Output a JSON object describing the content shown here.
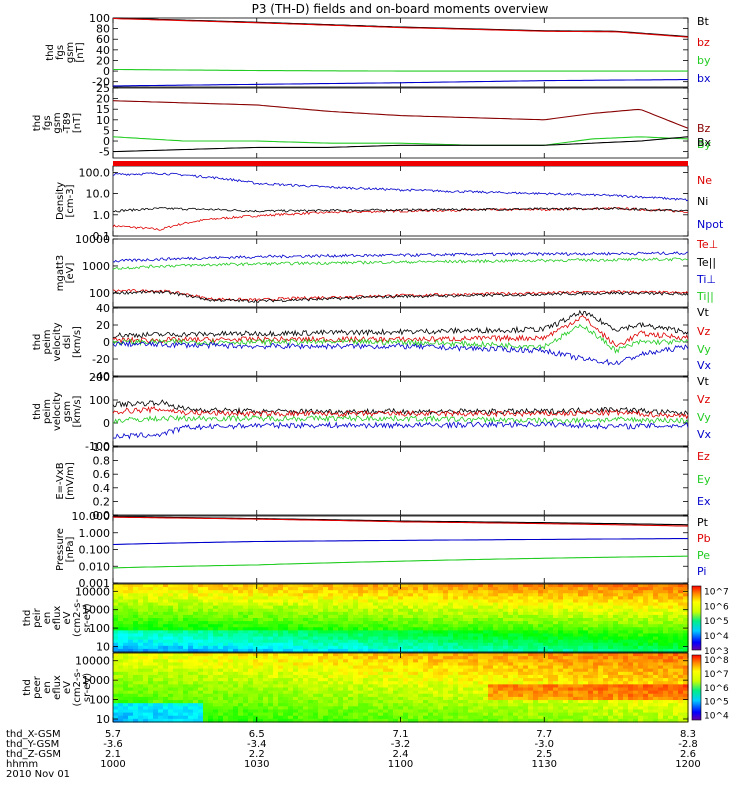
{
  "title": "P3 (TH-D) fields and on-board moments overview",
  "date": "2010 Nov 01",
  "colors": {
    "black": "#000000",
    "red": "#dd0000",
    "green": "#22cc22",
    "blue": "#0000cc",
    "darkred": "#880000"
  },
  "ephemeris": {
    "rows": [
      {
        "label": "thd_X-GSM",
        "values": [
          "5.7",
          "6.5",
          "7.1",
          "7.7",
          "8.3"
        ]
      },
      {
        "label": "thd_Y-GSM",
        "values": [
          "-3.6",
          "-3.4",
          "-3.2",
          "-3.0",
          "-2.8"
        ]
      },
      {
        "label": "thd_Z-GSM",
        "values": [
          "2.1",
          "2.2",
          "2.4",
          "2.5",
          "2.6"
        ]
      },
      {
        "label": "hhmm",
        "values": [
          "1000",
          "1030",
          "1100",
          "1130",
          "1200"
        ]
      }
    ]
  },
  "chart_data": [
    {
      "type": "line",
      "id": "fgs_gsm",
      "ylabel": [
        "thd",
        "fgs",
        "gsm",
        "[nT]"
      ],
      "ylim": [
        -30,
        100
      ],
      "yticks": [
        "100",
        "80",
        "60",
        "40",
        "20",
        "0",
        "-20"
      ],
      "ytick_values": [
        100,
        80,
        60,
        40,
        20,
        0,
        -20
      ],
      "legend": [
        "Bt",
        "bz",
        "by",
        "bx"
      ],
      "x": [
        1000,
        1030,
        1100,
        1130,
        1145,
        1200
      ],
      "series": [
        {
          "name": "Bt",
          "color": "#000000",
          "values": [
            100,
            92,
            83,
            76,
            75,
            65
          ]
        },
        {
          "name": "bz",
          "color": "#dd0000",
          "values": [
            99,
            91,
            82,
            75,
            74,
            64
          ]
        },
        {
          "name": "by",
          "color": "#22cc22",
          "values": [
            3,
            1,
            0,
            0,
            0,
            0
          ]
        },
        {
          "name": "bx",
          "color": "#0000cc",
          "values": [
            -28,
            -25,
            -22,
            -18,
            -17,
            -16
          ]
        }
      ]
    },
    {
      "type": "line",
      "id": "fgs_dsl",
      "ylabel": [
        "thd",
        "fgs",
        "gsm",
        "-T89",
        "[nT]"
      ],
      "ylim": [
        -8,
        25
      ],
      "yticks": [
        "25",
        "20",
        "15",
        "10",
        "5",
        "0",
        "-5"
      ],
      "ytick_values": [
        25,
        20,
        15,
        10,
        5,
        0,
        -5
      ],
      "legend": [
        "Bz",
        "By",
        "Bx"
      ],
      "x": [
        1000,
        1015,
        1030,
        1045,
        1100,
        1115,
        1130,
        1140,
        1150,
        1200
      ],
      "series": [
        {
          "name": "Bz",
          "color": "#880000",
          "values": [
            19,
            18,
            17,
            14,
            12,
            11,
            10,
            13,
            15,
            6
          ]
        },
        {
          "name": "By",
          "color": "#22cc22",
          "values": [
            2,
            0,
            0,
            -1,
            -1,
            -2,
            -2,
            1,
            2,
            1
          ]
        },
        {
          "name": "Bx",
          "color": "#000000",
          "values": [
            -5,
            -4,
            -3,
            -3,
            -2,
            -2,
            -2,
            -1,
            0,
            2
          ]
        }
      ]
    },
    {
      "type": "line",
      "id": "density",
      "scale": "log",
      "ylabel": [
        "Density",
        "[cm-3]"
      ],
      "ylim": [
        0.1,
        200
      ],
      "yticks": [
        "100.0",
        "10.0",
        "1.0",
        "0.1"
      ],
      "ytick_values": [
        100,
        10,
        1,
        0.1
      ],
      "legend": [
        "Ne",
        "Ni",
        "Npot"
      ],
      "x": [
        1000,
        1010,
        1020,
        1030,
        1045,
        1100,
        1115,
        1130,
        1145,
        1200
      ],
      "series": [
        {
          "name": "Ne",
          "color": "#dd0000",
          "values": [
            0.3,
            0.2,
            0.6,
            0.9,
            1.3,
            1.5,
            1.7,
            1.8,
            2.0,
            1.4
          ]
        },
        {
          "name": "Ni",
          "color": "#000000",
          "values": [
            1.5,
            2.0,
            1.8,
            1.5,
            1.6,
            1.7,
            1.8,
            1.9,
            2.0,
            1.5
          ]
        },
        {
          "name": "Npot",
          "color": "#0000cc",
          "values": [
            80,
            90,
            60,
            30,
            20,
            15,
            12,
            10,
            8,
            5
          ]
        }
      ]
    },
    {
      "type": "line",
      "id": "temperature",
      "scale": "log",
      "ylabel": [
        "mgatt3",
        "[eV]"
      ],
      "ylim": [
        30,
        10000
      ],
      "yticks": [
        "10000",
        "1000",
        "100"
      ],
      "ytick_values": [
        10000,
        1000,
        100
      ],
      "legend": [
        "Te⊥",
        "Te||",
        "Ti⊥",
        "Ti||"
      ],
      "x": [
        1000,
        1010,
        1020,
        1030,
        1045,
        1100,
        1115,
        1130,
        1145,
        1200
      ],
      "series": [
        {
          "name": "Te⊥",
          "color": "#dd0000",
          "values": [
            120,
            120,
            60,
            55,
            70,
            80,
            90,
            100,
            110,
            100
          ]
        },
        {
          "name": "Te||",
          "color": "#000000",
          "values": [
            100,
            110,
            55,
            50,
            60,
            75,
            80,
            90,
            100,
            90
          ]
        },
        {
          "name": "Ti⊥",
          "color": "#0000cc",
          "values": [
            1500,
            1800,
            2000,
            2200,
            2400,
            2500,
            2700,
            2800,
            2900,
            3000
          ]
        },
        {
          "name": "Ti||",
          "color": "#22cc22",
          "values": [
            800,
            1000,
            1100,
            1200,
            1300,
            1400,
            1500,
            1600,
            1700,
            1800
          ]
        }
      ]
    },
    {
      "type": "line",
      "id": "velocity_dsl",
      "ylabel": [
        "thd",
        "peim",
        "velocity",
        "dsl",
        "[km/s]"
      ],
      "ylim": [
        -40,
        40
      ],
      "yticks": [
        "40",
        "20",
        "0",
        "-20",
        "-40"
      ],
      "ytick_values": [
        40,
        20,
        0,
        -20,
        -40
      ],
      "legend": [
        "Vt",
        "Vz",
        "Vy",
        "Vx"
      ],
      "x": [
        1000,
        1030,
        1100,
        1130,
        1138,
        1145,
        1150,
        1200
      ],
      "series": [
        {
          "name": "Vt",
          "color": "#000000",
          "values": [
            8,
            10,
            12,
            15,
            35,
            15,
            20,
            12
          ]
        },
        {
          "name": "Vz",
          "color": "#dd0000",
          "values": [
            2,
            3,
            3,
            5,
            30,
            -5,
            10,
            5
          ]
        },
        {
          "name": "Vy",
          "color": "#22cc22",
          "values": [
            0,
            0,
            0,
            -5,
            20,
            -10,
            0,
            0
          ]
        },
        {
          "name": "Vx",
          "color": "#0000cc",
          "values": [
            -2,
            -5,
            -5,
            -10,
            -20,
            -25,
            -15,
            -5
          ]
        }
      ]
    },
    {
      "type": "line",
      "id": "velocity_gsm",
      "ylabel": [
        "thd",
        "peim",
        "velocity",
        "gsm",
        "[km/s]"
      ],
      "ylim": [
        -100,
        200
      ],
      "yticks": [
        "200",
        "100",
        "0",
        "-100"
      ],
      "ytick_values": [
        200,
        100,
        0,
        -100
      ],
      "legend": [
        "Vt",
        "Vz",
        "Vy",
        "Vx"
      ],
      "x": [
        1000,
        1010,
        1015,
        1030,
        1100,
        1130,
        1145,
        1200
      ],
      "series": [
        {
          "name": "Vt",
          "color": "#000000",
          "values": [
            80,
            90,
            60,
            50,
            50,
            50,
            60,
            40
          ]
        },
        {
          "name": "Vz",
          "color": "#dd0000",
          "values": [
            50,
            60,
            45,
            40,
            40,
            40,
            45,
            30
          ]
        },
        {
          "name": "Vy",
          "color": "#22cc22",
          "values": [
            10,
            20,
            20,
            20,
            20,
            10,
            15,
            10
          ]
        },
        {
          "name": "Vx",
          "color": "#0000cc",
          "values": [
            -60,
            -50,
            -20,
            -10,
            -10,
            -5,
            -15,
            -10
          ]
        }
      ]
    },
    {
      "type": "line",
      "id": "efield",
      "ylabel": [
        "E=-VxB",
        "[mV/m]"
      ],
      "ylim": [
        0,
        1
      ],
      "yticks": [
        "1.0",
        "0.8",
        "0.6",
        "0.4",
        "0.2",
        "0.0"
      ],
      "ytick_values": [
        1.0,
        0.8,
        0.6,
        0.4,
        0.2,
        0.0
      ],
      "legend": [
        "Ez",
        "Ey",
        "Ex"
      ],
      "x": [],
      "series": []
    },
    {
      "type": "line",
      "id": "pressure",
      "scale": "log",
      "ylabel": [
        "Pressure",
        "[nPa]"
      ],
      "ylim": [
        0.001,
        10
      ],
      "yticks": [
        "10.000",
        "1.000",
        "0.100",
        "0.010",
        "0.001"
      ],
      "ytick_values": [
        10,
        1,
        0.1,
        0.01,
        0.001
      ],
      "legend": [
        "Pt",
        "Pb",
        "Pe",
        "Pi"
      ],
      "x": [
        1000,
        1030,
        1100,
        1130,
        1200
      ],
      "series": [
        {
          "name": "Pt",
          "color": "#000000",
          "values": [
            9,
            7,
            5,
            4,
            3
          ]
        },
        {
          "name": "Pb",
          "color": "#dd0000",
          "values": [
            8.5,
            6.5,
            4.5,
            3.5,
            2.5
          ]
        },
        {
          "name": "Pe",
          "color": "#22cc22",
          "values": [
            0.008,
            0.012,
            0.02,
            0.03,
            0.04
          ]
        },
        {
          "name": "Pi",
          "color": "#0000cc",
          "values": [
            0.2,
            0.3,
            0.35,
            0.4,
            0.45
          ]
        }
      ]
    },
    {
      "type": "heatmap",
      "id": "eflux_ions",
      "scale": "log",
      "ylabel": [
        "thd",
        "peir",
        "en",
        "eflux",
        "eV",
        "(cm2-s-",
        "sr-eV)"
      ],
      "ylim": [
        5,
        25000
      ],
      "yticks": [
        "10000",
        "1000",
        "100",
        "10"
      ],
      "ytick_values": [
        10000,
        1000,
        100,
        10
      ],
      "colorbar": {
        "ticks": [
          "10^7",
          "10^6",
          "10^5",
          "10^4",
          "10^3"
        ],
        "range": [
          3,
          7.3
        ]
      }
    },
    {
      "type": "heatmap",
      "id": "eflux_electrons",
      "scale": "log",
      "ylabel": [
        "thd",
        "peer",
        "en",
        "eflux",
        "eV",
        "(cm2-s-",
        "sr-eV)"
      ],
      "ylim": [
        7,
        25000
      ],
      "yticks": [
        "10000",
        "1000",
        "100",
        "10"
      ],
      "ytick_values": [
        10000,
        1000,
        100,
        10
      ],
      "colorbar": {
        "ticks": [
          "10^8",
          "10^7",
          "10^6",
          "10^5",
          "10^4"
        ],
        "range": [
          3.6,
          8.3
        ]
      }
    }
  ]
}
